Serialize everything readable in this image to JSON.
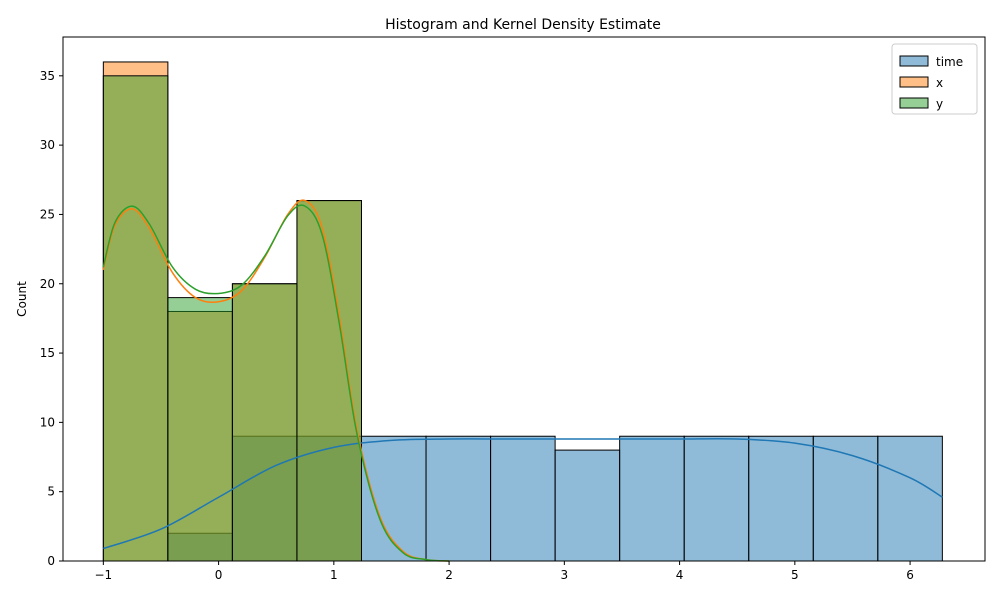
{
  "chart_data": {
    "type": "histogram",
    "title": "Histogram and Kernel Density Estimate",
    "xlabel": "",
    "ylabel": "Count",
    "xlim": [
      -1.35,
      6.65
    ],
    "ylim": [
      0,
      37.8
    ],
    "xticks": [
      -1,
      0,
      1,
      2,
      3,
      4,
      5,
      6
    ],
    "xtick_labels": [
      "−1",
      "0",
      "1",
      "2",
      "3",
      "4",
      "5",
      "6"
    ],
    "yticks": [
      0,
      5,
      10,
      15,
      20,
      25,
      30,
      35
    ],
    "legend_position": "top-right",
    "grid": false,
    "bin_edges": [
      -1.0,
      -0.44,
      0.12,
      0.68,
      1.24,
      1.8,
      2.36,
      2.92,
      3.48,
      4.04,
      4.6,
      5.16,
      5.72,
      6.28
    ],
    "series": [
      {
        "name": "time",
        "color": "#1f77b4",
        "counts": [
          0,
          2,
          9,
          9,
          9,
          9,
          9,
          8,
          9,
          9,
          9,
          9,
          9
        ],
        "kde": {
          "x": [
            -1.0,
            -0.5,
            0.0,
            0.5,
            1.0,
            1.5,
            2.0,
            2.5,
            3.0,
            3.5,
            4.0,
            4.5,
            5.0,
            5.5,
            6.0,
            6.28
          ],
          "y": [
            0.9,
            2.3,
            4.6,
            6.9,
            8.2,
            8.7,
            8.8,
            8.8,
            8.8,
            8.8,
            8.8,
            8.8,
            8.5,
            7.6,
            6.0,
            4.6
          ]
        }
      },
      {
        "name": "x",
        "color": "#ff7f0e",
        "counts": [
          36,
          18,
          20,
          26,
          0,
          0,
          0,
          0,
          0,
          0,
          0,
          0,
          0
        ],
        "kde": {
          "x": [
            -1.0,
            -0.9,
            -0.75,
            -0.6,
            -0.4,
            -0.2,
            0.0,
            0.2,
            0.4,
            0.6,
            0.75,
            0.9,
            1.05,
            1.2,
            1.4,
            1.6,
            1.8,
            2.0
          ],
          "y": [
            21.0,
            24.2,
            25.4,
            24.0,
            20.8,
            19.0,
            18.7,
            19.5,
            21.9,
            25.0,
            26.0,
            24.0,
            17.5,
            9.5,
            3.2,
            0.7,
            0.1,
            0.0
          ]
        }
      },
      {
        "name": "y",
        "color": "#2ca02c",
        "counts": [
          35,
          19,
          20,
          26,
          0,
          0,
          0,
          0,
          0,
          0,
          0,
          0,
          0
        ],
        "kde": {
          "x": [
            -1.0,
            -0.9,
            -0.75,
            -0.6,
            -0.4,
            -0.2,
            0.0,
            0.2,
            0.4,
            0.6,
            0.75,
            0.9,
            1.05,
            1.2,
            1.4,
            1.6,
            1.8,
            2.0
          ],
          "y": [
            21.2,
            24.4,
            25.6,
            24.3,
            21.2,
            19.6,
            19.3,
            19.9,
            22.0,
            24.9,
            25.6,
            23.5,
            17.0,
            9.2,
            3.0,
            0.6,
            0.1,
            0.0
          ]
        }
      }
    ]
  }
}
